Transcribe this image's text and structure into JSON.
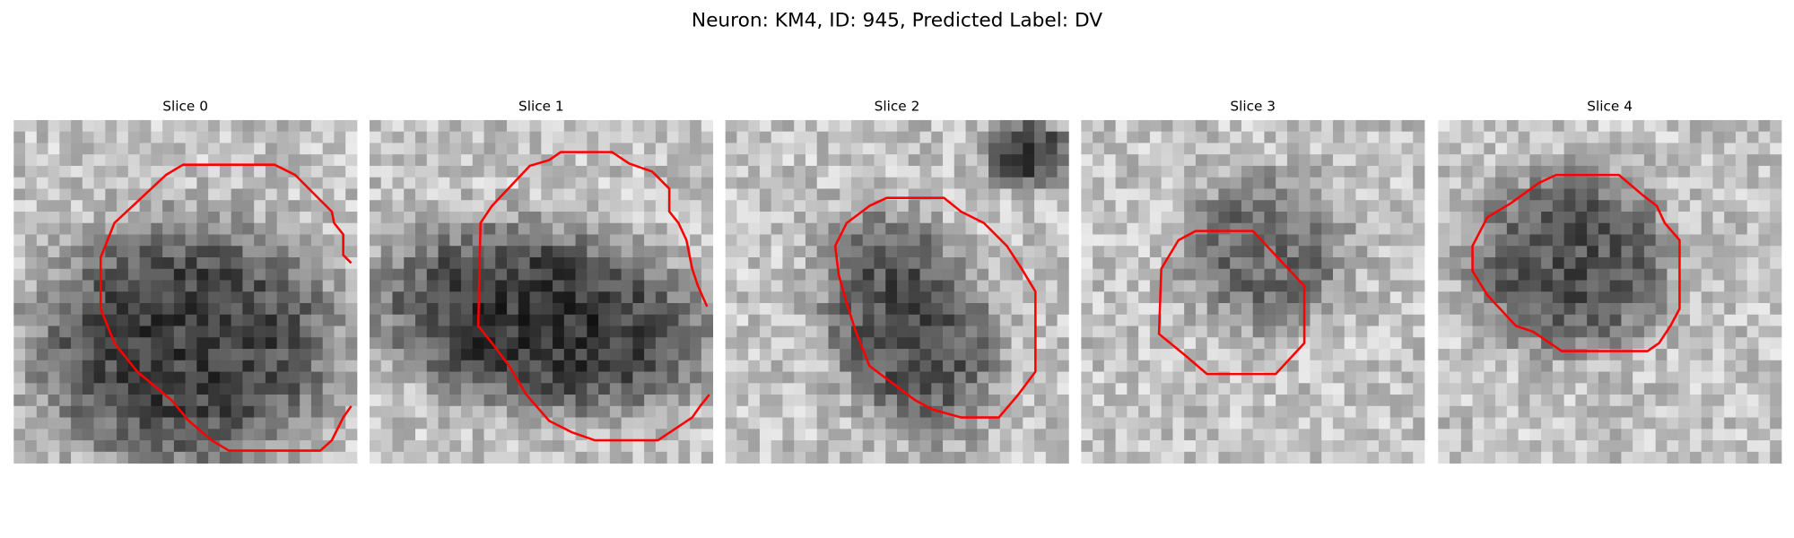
{
  "title": "Neuron: KM4, ID: 945, Predicted Label: DV",
  "panels": [
    {
      "title": "Slice 0"
    },
    {
      "title": "Slice 1"
    },
    {
      "title": "Slice 2"
    },
    {
      "title": "Slice 3"
    },
    {
      "title": "Slice 4"
    }
  ]
}
